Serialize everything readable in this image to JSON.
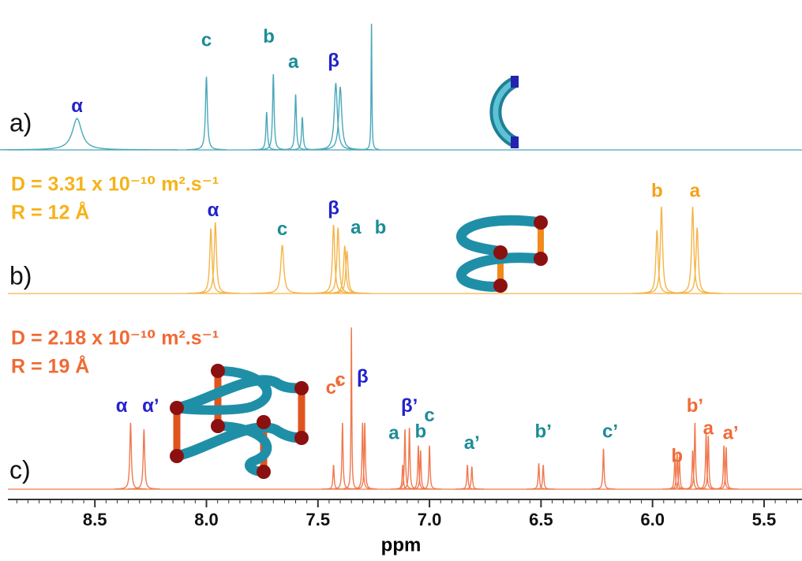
{
  "chart_data": {
    "type": "spectrum",
    "xlabel": "ppm",
    "xlim": [
      8.89,
      5.33
    ],
    "xticks": [
      8.5,
      {
        "value": 8.0,
        "label": "8.0"
      },
      7.5,
      {
        "value": 7.0,
        "label": "7.0"
      },
      6.5,
      {
        "value": 6.0,
        "label": "6.0"
      },
      5.5
    ],
    "minor_tick_step": 0.05,
    "series": [
      {
        "name": "a)",
        "color": "#4aa8ba",
        "peaks": [
          8.58,
          8.0,
          7.73,
          7.7,
          7.6,
          7.57,
          7.42,
          7.4,
          7.26
        ],
        "values": [
          0.25,
          0.58,
          0.3,
          0.6,
          0.44,
          0.26,
          0.53,
          0.5,
          1.0
        ],
        "widths": [
          0.025,
          0.005,
          0.004,
          0.004,
          0.004,
          0.004,
          0.008,
          0.008,
          0.002
        ],
        "info": [],
        "annotations": [
          {
            "text": "α",
            "x": 8.58,
            "y": 0.34,
            "color": "#2222cc"
          },
          {
            "text": "c",
            "x": 8.0,
            "y": 0.86,
            "color": "#1c8c98"
          },
          {
            "text": "b",
            "x": 7.72,
            "y": 0.89,
            "color": "#1c8c98"
          },
          {
            "text": "a",
            "x": 7.61,
            "y": 0.69,
            "color": "#1c8c98"
          },
          {
            "text": "β",
            "x": 7.43,
            "y": 0.7,
            "color": "#2222cc"
          }
        ]
      },
      {
        "name": "b)",
        "color": "#f5b448",
        "peaks": [
          7.98,
          7.96,
          7.66,
          7.43,
          7.41,
          7.38,
          7.37,
          5.98,
          5.96,
          5.82,
          5.8
        ],
        "values": [
          0.75,
          0.82,
          0.56,
          0.79,
          0.76,
          0.55,
          0.49,
          0.73,
          1.0,
          1.0,
          0.76
        ],
        "widths": [
          0.006,
          0.006,
          0.008,
          0.006,
          0.006,
          0.006,
          0.006,
          0.006,
          0.006,
          0.006,
          0.006
        ],
        "info": [
          {
            "text": "D = 3.31 x 10⁻¹⁰ m².s⁻¹",
            "color": "#f5b31a"
          },
          {
            "text": "R = 12 Å",
            "color": "#f5b31a"
          }
        ],
        "annotations": [
          {
            "text": "α",
            "x": 7.97,
            "y": 0.95,
            "color": "#2222cc"
          },
          {
            "text": "c",
            "x": 7.66,
            "y": 0.73,
            "color": "#1c8c98"
          },
          {
            "text": "β",
            "x": 7.43,
            "y": 0.97,
            "color": "#2222cc"
          },
          {
            "text": "a",
            "x": 7.33,
            "y": 0.75,
            "color": "#1c8c98"
          },
          {
            "text": "b",
            "x": 7.22,
            "y": 0.75,
            "color": "#1c8c98"
          },
          {
            "text": "b",
            "x": 5.98,
            "y": 1.17,
            "color": "#f5a21b"
          },
          {
            "text": "a",
            "x": 5.81,
            "y": 1.17,
            "color": "#f5a21b"
          }
        ]
      },
      {
        "name": "c)",
        "color": "#f0784e",
        "peaks": [
          8.34,
          8.28,
          7.43,
          7.39,
          7.35,
          7.3,
          7.29,
          7.12,
          7.11,
          7.09,
          7.05,
          7.04,
          7.0,
          6.83,
          6.81,
          6.51,
          6.49,
          6.22,
          5.9,
          5.89,
          5.88,
          5.82,
          5.81,
          5.76,
          5.75,
          5.68,
          5.67
        ],
        "values": [
          0.41,
          0.37,
          0.15,
          0.41,
          1.0,
          0.41,
          0.41,
          0.15,
          0.37,
          0.38,
          0.27,
          0.24,
          0.27,
          0.15,
          0.14,
          0.16,
          0.15,
          0.25,
          0.19,
          0.22,
          0.2,
          0.24,
          0.41,
          0.34,
          0.33,
          0.27,
          0.26
        ],
        "widths": [
          0.004,
          0.004,
          0.003,
          0.003,
          0.002,
          0.003,
          0.003,
          0.003,
          0.003,
          0.003,
          0.003,
          0.003,
          0.003,
          0.003,
          0.003,
          0.003,
          0.003,
          0.003,
          0.003,
          0.003,
          0.003,
          0.003,
          0.003,
          0.003,
          0.003,
          0.003,
          0.003
        ],
        "info": [
          {
            "text": "D = 2.18 x 10⁻¹⁰ m².s⁻¹",
            "color": "#f06a35"
          },
          {
            "text": "R = 19 Å",
            "color": "#f06a35"
          }
        ],
        "annotations": [
          {
            "text": "α",
            "x": 8.38,
            "y": 0.51,
            "color": "#2222cc"
          },
          {
            "text": "α’",
            "x": 8.25,
            "y": 0.51,
            "color": "#2222cc"
          },
          {
            "text": "c’",
            "x": 7.43,
            "y": 0.62,
            "color": "#f06a35"
          },
          {
            "text": "c",
            "x": 7.4,
            "y": 0.67,
            "color": "#f06a35"
          },
          {
            "text": "β",
            "x": 7.3,
            "y": 0.69,
            "color": "#2222cc"
          },
          {
            "text": "β’",
            "x": 7.09,
            "y": 0.51,
            "color": "#2222cc"
          },
          {
            "text": "a",
            "x": 7.16,
            "y": 0.34,
            "color": "#1c8c98"
          },
          {
            "text": "b",
            "x": 7.04,
            "y": 0.35,
            "color": "#1c8c98"
          },
          {
            "text": "c",
            "x": 7.0,
            "y": 0.45,
            "color": "#1c8c98"
          },
          {
            "text": "a’",
            "x": 6.81,
            "y": 0.28,
            "color": "#1c8c98"
          },
          {
            "text": "b’",
            "x": 6.49,
            "y": 0.35,
            "color": "#1c8c98"
          },
          {
            "text": "c’",
            "x": 6.19,
            "y": 0.35,
            "color": "#1c8c98"
          },
          {
            "text": "b",
            "x": 5.89,
            "y": 0.2,
            "color": "#f06a35"
          },
          {
            "text": "b’",
            "x": 5.81,
            "y": 0.51,
            "color": "#f06a35"
          },
          {
            "text": "a",
            "x": 5.75,
            "y": 0.37,
            "color": "#f06a35"
          },
          {
            "text": "a’",
            "x": 5.65,
            "y": 0.34,
            "color": "#f06a35"
          }
        ]
      }
    ]
  }
}
